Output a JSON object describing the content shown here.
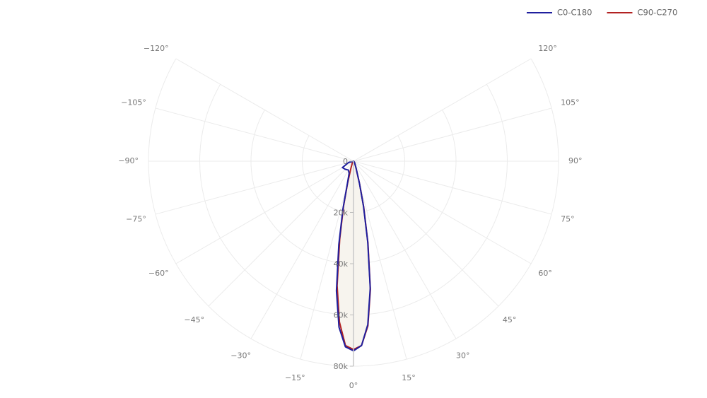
{
  "chart_data": {
    "type": "polar",
    "theta": [
      -90,
      -75,
      -60,
      -45,
      -30,
      -20,
      -15,
      -12.5,
      -10,
      -7.5,
      -5,
      -2.5,
      0,
      2.5,
      5,
      7.5,
      10,
      12.5,
      15,
      20,
      30,
      45,
      60,
      75,
      90
    ],
    "series": [
      {
        "name": "C0-C180",
        "color": "#1f1f9e",
        "values": [
          0,
          2000,
          5000,
          4500,
          4000,
          5000,
          9500,
          19000,
          33000,
          51000,
          65000,
          72500,
          74000,
          72000,
          64000,
          50000,
          32000,
          18000,
          9000,
          3000,
          1000,
          500,
          0,
          0,
          0
        ]
      },
      {
        "name": "C90-C270",
        "color": "#b22222",
        "values": [
          0,
          0,
          0,
          500,
          1000,
          3000,
          9000,
          18000,
          31000,
          49000,
          63000,
          72000,
          73500,
          72000,
          64500,
          50500,
          32500,
          18500,
          9200,
          3000,
          1000,
          500,
          0,
          0,
          0
        ]
      }
    ],
    "fill_color": "#f7f4ee",
    "rlim": [
      0,
      80000
    ],
    "rticks": [
      0,
      {
        "value": 20000,
        "label": "20k"
      },
      {
        "value": 40000,
        "label": "40k"
      },
      {
        "value": 60000,
        "label": "60k"
      },
      {
        "value": 80000,
        "label": "80k"
      }
    ],
    "thetaticks": [
      {
        "value": -120,
        "label": "−120°"
      },
      {
        "value": -105,
        "label": "−105°"
      },
      {
        "value": -90,
        "label": "−90°"
      },
      {
        "value": -75,
        "label": "−75°"
      },
      {
        "value": -60,
        "label": "−60°"
      },
      {
        "value": -45,
        "label": "−45°"
      },
      {
        "value": -30,
        "label": "−30°"
      },
      {
        "value": -15,
        "label": "−15°"
      },
      {
        "value": 0,
        "label": "0°"
      },
      {
        "value": 15,
        "label": "15°"
      },
      {
        "value": 30,
        "label": "30°"
      },
      {
        "value": 45,
        "label": "45°"
      },
      {
        "value": 60,
        "label": "60°"
      },
      {
        "value": 75,
        "label": "75°"
      },
      {
        "value": 90,
        "label": "90°"
      },
      {
        "value": 105,
        "label": "105°"
      },
      {
        "value": 120,
        "label": "120°"
      }
    ],
    "grid": true
  }
}
